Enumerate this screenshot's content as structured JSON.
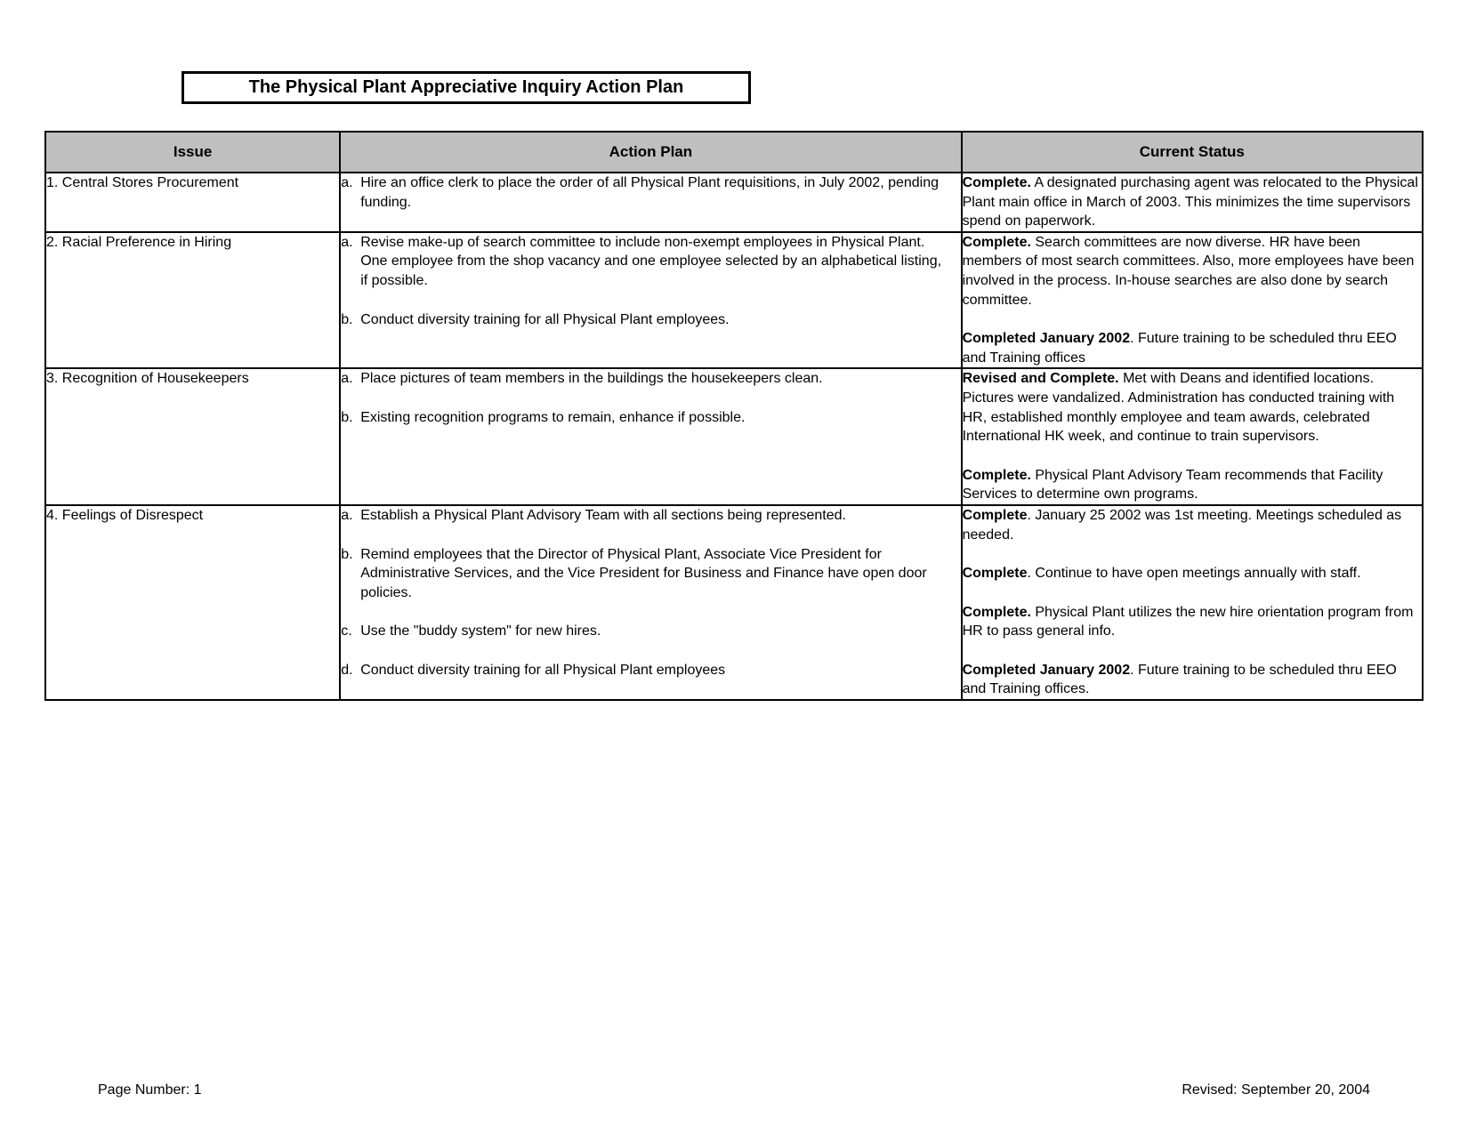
{
  "title": "The Physical Plant Appreciative Inquiry Action Plan",
  "columns": {
    "issue": "Issue",
    "action": "Action Plan",
    "status": "Current Status"
  },
  "colors": {
    "header_bg": "#bfbfbf",
    "border": "#000000",
    "page_bg": "#ffffff",
    "text": "#000000"
  },
  "rows": [
    {
      "num": "1.",
      "issue": "Central Stores Procurement",
      "items": [
        {
          "letter": "a.",
          "action": "Hire an office clerk to place the order of all Physical Plant requisitions, in July 2002, pending funding.",
          "status_bold": "Complete.",
          "status_text": "  A designated purchasing agent was relocated to the Physical Plant main office in March of 2003. This minimizes the time supervisors spend on paperwork."
        }
      ]
    },
    {
      "num": "2.",
      "issue": "Racial Preference in Hiring",
      "items": [
        {
          "letter": "a.",
          "action": "Revise make-up of search committee to include non-exempt employees in Physical Plant.  One employee from the shop vacancy and one employee selected by an alphabetical listing, if possible.",
          "status_bold": "Complete.",
          "status_text": "  Search committees are now diverse. HR have been members of most search committees. Also, more employees have been involved in the process.  In-house searches are also done by search committee."
        },
        {
          "letter": "b.",
          "action": "Conduct diversity training for all Physical Plant employees.",
          "status_bold": "Completed January 2002",
          "status_text": ".  Future training to be scheduled thru EEO and Training offices"
        }
      ]
    },
    {
      "num": "3.",
      "issue": "Recognition of Housekeepers",
      "items": [
        {
          "letter": "a.",
          "action": "Place pictures of team members in the buildings the housekeepers clean.",
          "status_bold": "Revised and Complete.",
          "status_text": "  Met with Deans and identified locations.  Pictures were vandalized.  Administration has conducted training with HR, established monthly employee and team awards, celebrated International HK week, and continue to train supervisors."
        },
        {
          "letter": "b.",
          "action": "Existing recognition programs to remain, enhance if possible.",
          "status_bold": "Complete.",
          "status_text": " Physical Plant Advisory Team recommends that Facility Services to determine own programs."
        }
      ]
    },
    {
      "num": "4.",
      "issue": "Feelings of Disrespect",
      "items": [
        {
          "letter": "a.",
          "action": "Establish a Physical Plant Advisory Team with all sections being represented.",
          "status_bold": "Complete",
          "status_text": ".  January 25 2002 was 1st meeting. Meetings scheduled as needed."
        },
        {
          "letter": "b.",
          "action": "Remind employees that the Director of Physical Plant, Associate Vice President for Administrative Services, and the Vice President for Business and Finance have open door policies.",
          "status_bold": "Complete",
          "status_text": ".  Continue to have open meetings annually with staff."
        },
        {
          "letter": "c.",
          "action": "Use the \"buddy system\" for new hires.",
          "status_bold": "Complete.",
          "status_text": "  Physical Plant utilizes the new hire orientation program from HR to pass general info."
        },
        {
          "letter": "d.",
          "action": "Conduct diversity training for all Physical Plant employees",
          "status_bold": "Completed January 2002",
          "status_text": ".  Future training to be scheduled thru EEO and Training offices."
        }
      ]
    }
  ],
  "footer": {
    "left": "Page Number:  1",
    "right": "Revised:  September 20, 2004"
  }
}
